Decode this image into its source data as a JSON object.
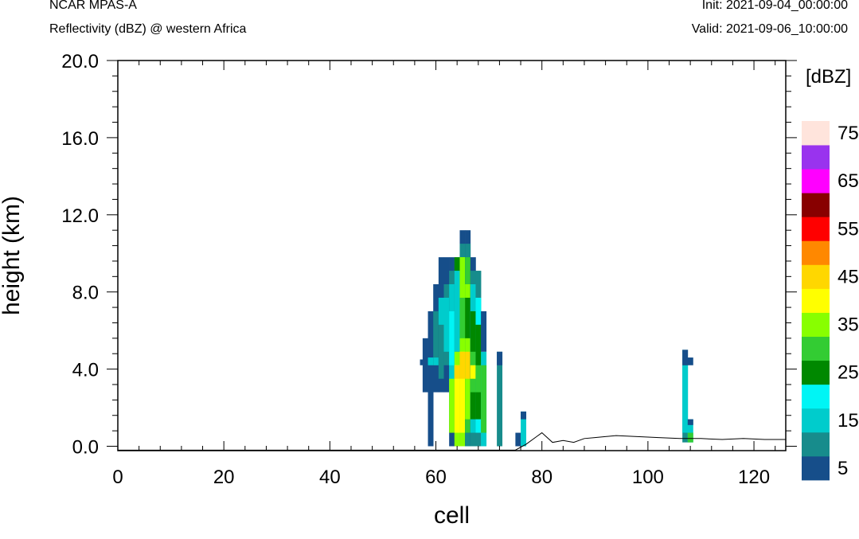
{
  "header": {
    "model": "NCAR MPAS-A",
    "field": "Reflectivity (dBZ) @ western Africa",
    "init": "Init: 2021-09-04_00:00:00",
    "valid": "Valid: 2021-09-06_10:00:00"
  },
  "chart_data": {
    "type": "heatmap",
    "xlabel": "cell",
    "ylabel": "height (km)",
    "xlim": [
      0,
      126
    ],
    "ylim": [
      -0.3,
      20
    ],
    "x_ticks": [
      0,
      20,
      40,
      60,
      80,
      100,
      120
    ],
    "x_tick_labels": [
      "0",
      "20",
      "40",
      "60",
      "80",
      "100",
      "120"
    ],
    "y_ticks": [
      0,
      4,
      8,
      12,
      16,
      20
    ],
    "y_tick_labels": [
      "0.0",
      "4.0",
      "8.0",
      "12.0",
      "16.0",
      "20.0"
    ],
    "colorbar": {
      "units": "[dBZ]",
      "levels": [
        5,
        10,
        15,
        20,
        25,
        30,
        35,
        40,
        45,
        50,
        55,
        60,
        65,
        70,
        75
      ],
      "labels": [
        "5",
        "15",
        "25",
        "35",
        "45",
        "55",
        "65",
        "75"
      ],
      "colors": [
        "#164e8a",
        "#178c8c",
        "#00cccc",
        "#00f5f5",
        "#008800",
        "#33cc33",
        "#88ff00",
        "#ffff00",
        "#ffd700",
        "#ff8800",
        "#ff0000",
        "#880000",
        "#ff00ff",
        "#9933ee",
        "#ffe4dc"
      ]
    },
    "cell_height_km": 0.7,
    "columns": [
      {
        "cell": 57.5,
        "cells": [
          [
            4.2,
            4.5,
            5
          ]
        ]
      },
      {
        "cell": 58,
        "cells": [
          [
            2.8,
            5.6,
            5
          ]
        ]
      },
      {
        "cell": 59,
        "cells": [
          [
            0,
            7.0,
            5
          ],
          [
            4.2,
            4.6,
            15
          ]
        ]
      },
      {
        "cell": 60,
        "cells": [
          [
            2.8,
            8.4,
            5
          ],
          [
            4.2,
            7.0,
            10
          ],
          [
            4.2,
            4.6,
            15
          ]
        ]
      },
      {
        "cell": 61,
        "cells": [
          [
            2.8,
            9.8,
            5
          ],
          [
            3.5,
            7.7,
            10
          ],
          [
            6.3,
            7.7,
            15
          ]
        ]
      },
      {
        "cell": 62,
        "cells": [
          [
            2.8,
            9.8,
            5
          ],
          [
            4.2,
            8.4,
            10
          ],
          [
            4.9,
            7.7,
            15
          ]
        ]
      },
      {
        "cell": 63,
        "cells": [
          [
            0,
            9.8,
            5
          ],
          [
            0.7,
            9.1,
            10
          ],
          [
            1.4,
            8.4,
            15
          ],
          [
            4.2,
            7.0,
            20
          ],
          [
            0.7,
            3.5,
            35
          ]
        ]
      },
      {
        "cell": 64,
        "cells": [
          [
            0,
            9.8,
            10
          ],
          [
            4.9,
            9.1,
            15
          ],
          [
            0,
            4.9,
            35
          ],
          [
            0.7,
            4.2,
            40
          ],
          [
            3.5,
            4.2,
            45
          ],
          [
            9.1,
            9.8,
            25
          ]
        ]
      },
      {
        "cell": 65,
        "cells": [
          [
            0,
            11.2,
            5
          ],
          [
            0,
            10.5,
            10
          ],
          [
            0,
            9.8,
            35
          ],
          [
            0.7,
            4.9,
            40
          ],
          [
            3.5,
            4.9,
            45
          ],
          [
            5.6,
            7.7,
            30
          ],
          [
            9.1,
            9.8,
            35
          ]
        ]
      },
      {
        "cell": 66,
        "cells": [
          [
            0,
            11.2,
            5
          ],
          [
            0,
            10.5,
            10
          ],
          [
            0.7,
            9.8,
            30
          ],
          [
            1.4,
            8.4,
            35
          ],
          [
            3.5,
            4.9,
            45
          ],
          [
            5.6,
            7.7,
            25
          ]
        ]
      },
      {
        "cell": 67,
        "cells": [
          [
            0,
            9.8,
            5
          ],
          [
            0,
            9.1,
            10
          ],
          [
            0.7,
            8.4,
            15
          ],
          [
            1.4,
            7.0,
            25
          ],
          [
            2.8,
            4.9,
            30
          ],
          [
            3.5,
            4.2,
            40
          ]
        ]
      },
      {
        "cell": 68,
        "cells": [
          [
            0,
            9.1,
            10
          ],
          [
            0.7,
            7.7,
            20
          ],
          [
            1.4,
            6.3,
            25
          ],
          [
            2.8,
            4.2,
            30
          ]
        ]
      },
      {
        "cell": 69,
        "cells": [
          [
            0,
            4.9,
            15
          ],
          [
            0.7,
            4.2,
            30
          ],
          [
            4.9,
            7.0,
            5
          ]
        ]
      },
      {
        "cell": 72,
        "cells": [
          [
            0,
            4.9,
            10
          ],
          [
            4.2,
            4.9,
            5
          ]
        ]
      },
      {
        "cell": 75.5,
        "cells": [
          [
            0,
            0.7,
            5
          ]
        ]
      },
      {
        "cell": 76.5,
        "cells": [
          [
            0,
            1.8,
            15
          ],
          [
            1.4,
            1.8,
            5
          ]
        ]
      },
      {
        "cell": 107,
        "cells": [
          [
            0.2,
            5.0,
            10
          ],
          [
            0.7,
            4.2,
            15
          ],
          [
            4.2,
            5.0,
            5
          ]
        ]
      },
      {
        "cell": 108,
        "cells": [
          [
            0.2,
            1.4,
            15
          ],
          [
            0.2,
            0.7,
            30
          ],
          [
            4.2,
            4.6,
            5
          ],
          [
            1.1,
            1.4,
            5
          ]
        ]
      }
    ],
    "terrain": {
      "x": [
        0,
        58,
        60,
        65,
        70,
        75,
        77,
        79,
        80,
        82,
        84,
        86,
        88,
        90,
        94,
        98,
        102,
        106,
        110,
        114,
        118,
        122,
        126
      ],
      "y": [
        -0.2,
        -0.2,
        -0.2,
        -0.2,
        -0.2,
        -0.2,
        0.1,
        0.5,
        0.7,
        0.2,
        0.3,
        0.2,
        0.4,
        0.45,
        0.55,
        0.5,
        0.45,
        0.4,
        0.4,
        0.35,
        0.4,
        0.35,
        0.35
      ]
    }
  }
}
